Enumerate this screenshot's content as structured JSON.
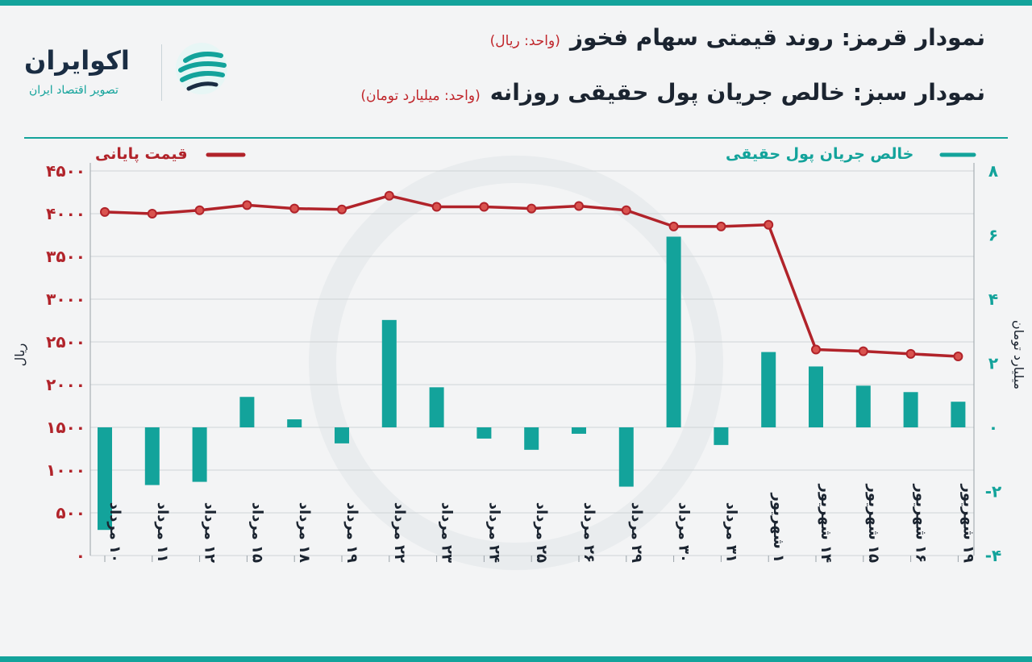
{
  "header": {
    "title_red": "نمودار قرمز: روند قیمتی سهام فخوز",
    "title_red_unit": "(واحد: ریال)",
    "title_green": "نمودار سبز: خالص جریان پول حقیقی روزانه",
    "title_green_unit": "(واحد: میلیارد تومان)"
  },
  "logo": {
    "name": "اکوایران",
    "tagline": "تصویر اقتصاد ایران"
  },
  "colors": {
    "accent": "#13a39b",
    "price_line": "#b1232a",
    "bars": "#13a39b",
    "title": "#1b2430",
    "grid": "#cfd3d6"
  },
  "chart_data": {
    "type": "bar+line",
    "categories": [
      "۱۰ مرداد",
      "۱۱ مرداد",
      "۱۲ مرداد",
      "۱۵ مرداد",
      "۱۸ مرداد",
      "۱۹ مرداد",
      "۲۲ مرداد",
      "۲۳ مرداد",
      "۲۴ مرداد",
      "۲۵ مرداد",
      "۲۶ مرداد",
      "۲۹ مرداد",
      "۳۰ مرداد",
      "۳۱ مرداد",
      "۱ شهریور",
      "۱۴ شهریور",
      "۱۵ شهریور",
      "۱۶ شهریور",
      "۱۹ شهریور"
    ],
    "series": [
      {
        "name": "قیمت پایانی",
        "kind": "line",
        "axis": "left",
        "color": "#b1232a",
        "values": [
          4020,
          4000,
          4040,
          4100,
          4060,
          4050,
          4210,
          4080,
          4080,
          4060,
          4090,
          4040,
          3850,
          3850,
          3870,
          2410,
          2390,
          2360,
          2330
        ]
      },
      {
        "name": "خالص جریان پول حقیقی",
        "kind": "bar",
        "axis": "right",
        "color": "#13a39b",
        "values": [
          -3.2,
          -1.8,
          -1.7,
          0.95,
          0.25,
          -0.5,
          3.35,
          1.25,
          -0.35,
          -0.7,
          -0.2,
          -1.85,
          5.95,
          -0.55,
          2.35,
          1.9,
          1.3,
          1.1,
          0.8
        ]
      }
    ],
    "left_axis": {
      "label": "ریال",
      "ylim": [
        0,
        4500
      ],
      "ticks": [
        0,
        500,
        1000,
        1500,
        2000,
        2500,
        3000,
        3500,
        4000,
        4500
      ],
      "tick_labels": [
        "۰",
        "۵۰۰",
        "۱۰۰۰",
        "۱۵۰۰",
        "۲۰۰۰",
        "۲۵۰۰",
        "۳۰۰۰",
        "۳۵۰۰",
        "۴۰۰۰",
        "۴۵۰۰"
      ]
    },
    "right_axis": {
      "label": "میلیارد تومان",
      "ylim": [
        -4,
        8
      ],
      "ticks": [
        -4,
        -2,
        0,
        2,
        4,
        6,
        8
      ],
      "tick_labels": [
        "-۴",
        "-۲",
        "۰",
        "۲",
        "۴",
        "۶",
        "۸"
      ]
    },
    "grid": true,
    "legend": [
      "top-left: قیمت پایانی",
      "top-right: خالص جریان پول حقیقی"
    ]
  }
}
